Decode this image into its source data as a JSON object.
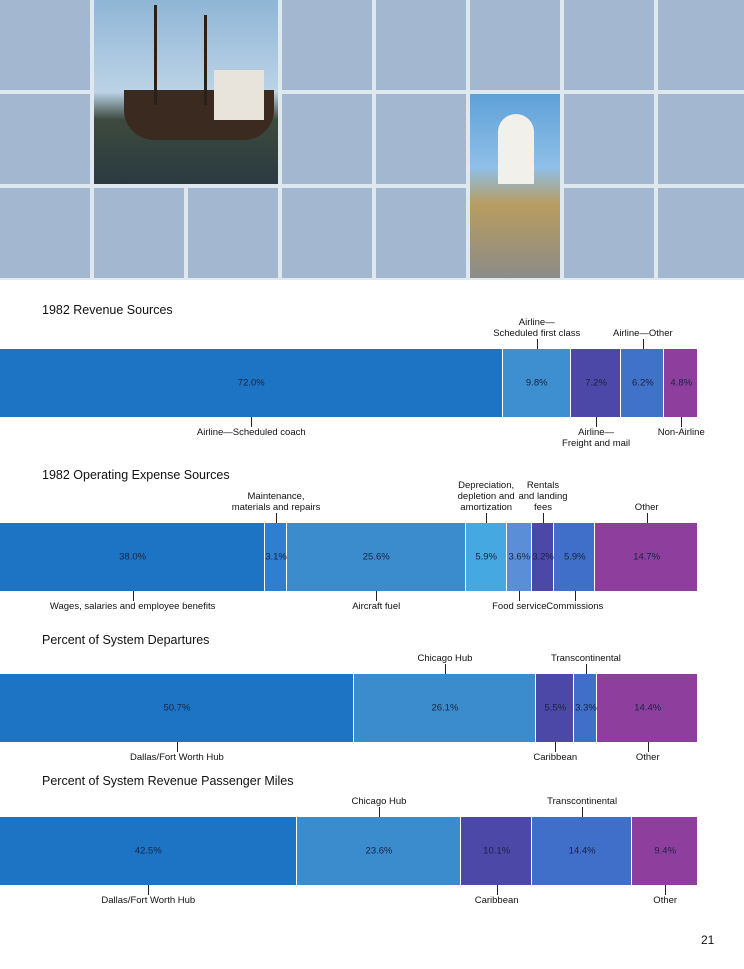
{
  "page_number": "21",
  "chart_data": [
    {
      "type": "stacked-bar",
      "title": "1982 Revenue Sources",
      "categories": [
        "Airline—Scheduled coach",
        "Airline—\nScheduled first class",
        "Airline—\nFreight and mail",
        "Airline—Other",
        "Non-Airline"
      ],
      "values": [
        72.0,
        9.8,
        7.2,
        6.2,
        4.8
      ],
      "value_labels": [
        "72.0%",
        "9.8%",
        "7.2%",
        "6.2%",
        "4.8%"
      ],
      "colors": [
        "#1d74c4",
        "#3d8fd0",
        "#4b48a8",
        "#3f72c8",
        "#8e3f9e"
      ]
    },
    {
      "type": "stacked-bar",
      "title": "1982 Operating Expense Sources",
      "categories": [
        "Wages, salaries and employee benefits",
        "Maintenance,\nmaterials and repairs",
        "Aircraft fuel",
        "Depreciation,\ndepletion and\namortization",
        "Food service",
        "Rentals\nand landing\nfees",
        "Commissions",
        "Other"
      ],
      "values": [
        38.0,
        3.1,
        25.6,
        5.9,
        3.6,
        3.2,
        5.9,
        14.7
      ],
      "value_labels": [
        "38.0%",
        "3.1%",
        "25.6%",
        "5.9%",
        "3.6%",
        "3.2%",
        "5.9%",
        "14.7%"
      ],
      "colors": [
        "#1d74c4",
        "#2e7fd0",
        "#3a8ccc",
        "#45a8e0",
        "#5a8fd8",
        "#4b48a8",
        "#3f6fc8",
        "#8e3f9e"
      ]
    },
    {
      "type": "stacked-bar",
      "title": "Percent of System Departures",
      "categories": [
        "Dallas/Fort Worth Hub",
        "Chicago Hub",
        "Caribbean",
        "Transcontinental",
        "Other"
      ],
      "values": [
        50.7,
        26.1,
        5.5,
        3.3,
        14.4
      ],
      "value_labels": [
        "50.7%",
        "26.1%",
        "5.5%",
        "3.3%",
        "14.4%"
      ],
      "colors": [
        "#1d74c4",
        "#3a8ccc",
        "#4b48a8",
        "#3f6fc8",
        "#8e3f9e"
      ]
    },
    {
      "type": "stacked-bar",
      "title": "Percent of System Revenue Passenger Miles",
      "categories": [
        "Dallas/Fort Worth Hub",
        "Chicago Hub",
        "Caribbean",
        "Transcontinental",
        "Other"
      ],
      "values": [
        42.5,
        23.6,
        10.1,
        14.4,
        9.4
      ],
      "value_labels": [
        "42.5%",
        "23.6%",
        "10.1%",
        "14.4%",
        "9.4%"
      ],
      "colors": [
        "#1d74c4",
        "#3a8ccc",
        "#4b48a8",
        "#3f6fc8",
        "#8e3f9e"
      ]
    }
  ]
}
